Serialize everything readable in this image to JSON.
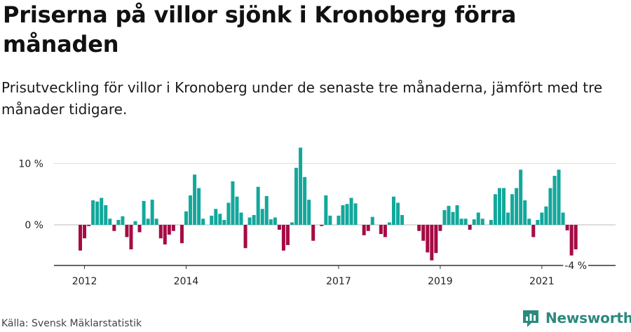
{
  "title": "Priserna på villor sjönk i Kronoberg förra månaden",
  "subtitle": "Prisutveckling för villor i Kronoberg under de senaste tre månaderna, jämfört med tre månader tidigare.",
  "source": "Källa: Svensk Mäklarstatistik",
  "brand": "Newsworthy",
  "colors": {
    "positive": "#12a89c",
    "negative": "#a50b44",
    "grid": "#dddddd",
    "axis": "#333333",
    "brand": "#2b8a7e"
  },
  "chart_data": {
    "type": "bar",
    "ylabel": "",
    "xlabel": "",
    "ylim": [
      -6.5,
      13.5
    ],
    "y_ticks": [
      {
        "value": 0,
        "label": "0 %"
      },
      {
        "value": 10,
        "label": "10 %"
      }
    ],
    "x_ticks": [
      {
        "index": 1,
        "label": "2012"
      },
      {
        "index": 25,
        "label": "2014"
      },
      {
        "index": 61,
        "label": "2017"
      },
      {
        "index": 85,
        "label": "2019"
      },
      {
        "index": 109,
        "label": "2021"
      }
    ],
    "last_value_label": "-4 %",
    "start": "2011-12",
    "values": [
      -4.2,
      -2.2,
      -0.2,
      4.0,
      3.8,
      4.4,
      3.2,
      1.0,
      -1.0,
      0.8,
      1.4,
      -2.0,
      -4.0,
      0.6,
      -1.2,
      3.9,
      1.0,
      4.1,
      1.0,
      -2.2,
      -3.2,
      -1.6,
      -1.0,
      0.0,
      -3.0,
      2.2,
      4.8,
      8.2,
      6.0,
      1.0,
      0.0,
      1.5,
      2.6,
      1.8,
      0.8,
      3.6,
      7.1,
      4.6,
      2.0,
      -3.8,
      1.2,
      1.6,
      6.2,
      2.6,
      4.7,
      0.9,
      1.2,
      -0.8,
      -4.2,
      -3.3,
      0.4,
      9.3,
      12.6,
      7.8,
      4.1,
      -2.6,
      0.0,
      -0.2,
      4.8,
      1.5,
      0.0,
      1.5,
      3.2,
      3.4,
      4.4,
      3.5,
      0.0,
      -1.7,
      -1.0,
      1.3,
      0.0,
      -1.5,
      -2.0,
      0.4,
      4.6,
      3.6,
      1.6,
      0.0,
      0.0,
      0.0,
      -1.0,
      -2.6,
      -4.5,
      -5.8,
      -4.6,
      -1.0,
      2.4,
      3.1,
      2.1,
      3.2,
      1.0,
      1.0,
      -0.8,
      0.9,
      2.0,
      1.0,
      0.0,
      0.8,
      5.0,
      6.0,
      6.0,
      2.0,
      5.0,
      6.0,
      9.0,
      4.0,
      1.0,
      -2.0,
      0.8,
      2.0,
      3.0,
      6.0,
      8.0,
      9.0,
      2.0,
      -0.9,
      -5.0,
      -4.0
    ]
  }
}
